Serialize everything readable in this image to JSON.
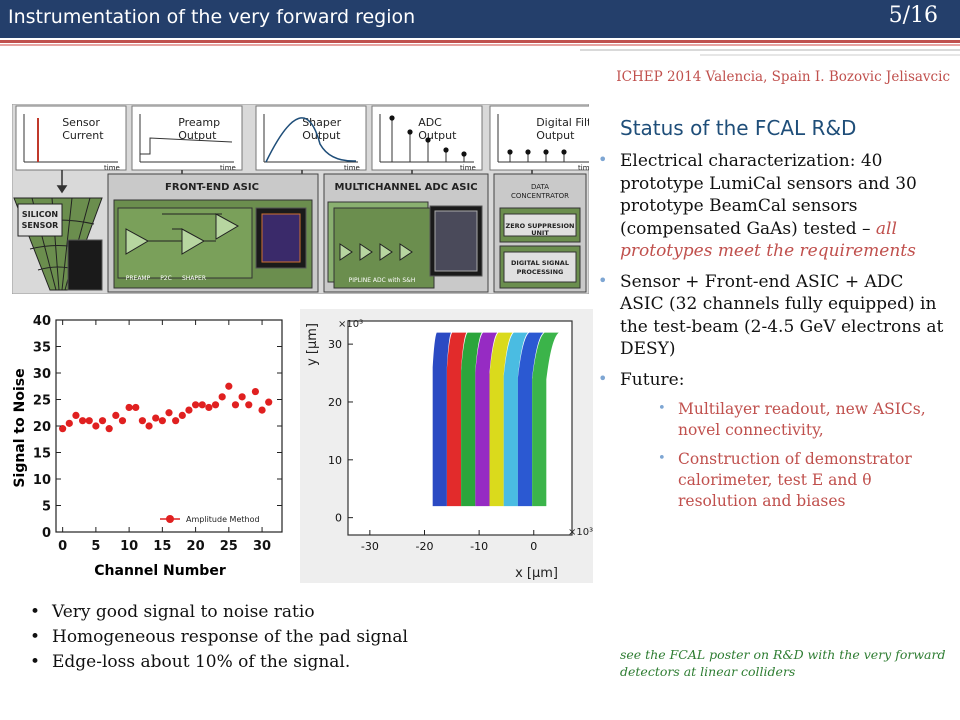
{
  "header": {
    "title": "Instrumentation of the very forward region",
    "page": "5/16"
  },
  "subheader": "ICHEP 2014 Valencia, Spain I. Bozovic Jelisavcic",
  "right": {
    "title": "Status of the FCAL R&D",
    "bullets": [
      {
        "text": "Electrical characterization: 40 prototype LumiCal sensors and 30 prototype BeamCal sensors (compensated GaAs) tested –",
        "highlight": "all prototypes meet the requirements"
      },
      {
        "text": "Sensor + Front-end ASIC + ADC ASIC (32 channels fully equipped)  in the test-beam (2-4.5 GeV electrons at DESY)"
      },
      {
        "text": "Future:"
      }
    ],
    "sub_bullets": [
      "Multilayer readout, new ASICs, novel connectivity,",
      "Construction of demonstrator calorimeter, test E and θ resolution and biases"
    ],
    "note": "see  the FCAL poster  on R&D with the very forward detectors at linear colliders"
  },
  "bottom_bullets": [
    "Very good signal to noise ratio",
    "Homogeneous response of the pad signal",
    "Edge-loss about 10% of the signal."
  ],
  "diagram": {
    "signals": [
      {
        "label": "Sensor\nCurrent",
        "axis": "time"
      },
      {
        "label": "Preamp\nOutput",
        "axis": "time"
      },
      {
        "label": "Shaper\nOutput",
        "axis": "time"
      },
      {
        "label": "ADC\nOutput",
        "axis": "time"
      },
      {
        "label": "Digital Filter\nOutput",
        "axis": "time"
      }
    ],
    "blocks": {
      "frontend": "FRONT-END ASIC",
      "adc": "MULTICHANNEL ADC ASIC",
      "concentrator": "DATA\nCONCENTRATOR",
      "zero_suppression": "ZERO SUPPRESION\nUNIT",
      "dsp": "DIGITAL SIGNAL\nPROCESSING",
      "sensor": "SILICON\nSENSOR",
      "preamp": "PREAMP",
      "p2c": "P2C",
      "shaper": "SHAPER",
      "pipeline": "PIPLINE ADC with S&H"
    }
  },
  "chart_data": [
    {
      "type": "scatter",
      "xlabel": "Channel Number",
      "ylabel": "Signal to Noise",
      "xlim": [
        -1,
        33
      ],
      "ylim": [
        0,
        40
      ],
      "xticks": [
        0,
        5,
        10,
        15,
        20,
        25,
        30
      ],
      "yticks": [
        0,
        5,
        10,
        15,
        20,
        25,
        30,
        35,
        40
      ],
      "legend": "Amplitude Method",
      "legend_position": "bottom-right",
      "marker_color": "#e02020",
      "x": [
        0,
        1,
        2,
        3,
        4,
        5,
        6,
        7,
        8,
        9,
        10,
        11,
        12,
        13,
        14,
        15,
        16,
        17,
        18,
        19,
        20,
        21,
        22,
        23,
        24,
        25,
        26,
        27,
        28,
        29,
        30,
        31
      ],
      "y": [
        19.5,
        20.5,
        22.0,
        21.0,
        21.0,
        20.0,
        21.0,
        19.5,
        22.0,
        21.0,
        23.5,
        23.5,
        21.0,
        20.0,
        21.5,
        21.0,
        22.5,
        21.0,
        22.0,
        23.0,
        24.0,
        24.0,
        23.5,
        24.0,
        25.5,
        27.5,
        24.0,
        25.5,
        24.0,
        26.5,
        23.0,
        24.5
      ]
    },
    {
      "type": "heatmap",
      "xlabel": "x [μm]",
      "ylabel": "y [μm]",
      "x_multiplier": "×10³",
      "y_multiplier": "×10³",
      "xticks": [
        -30,
        -20,
        -10,
        0
      ],
      "yticks": [
        0,
        10,
        20,
        30
      ],
      "xlim": [
        -34,
        7
      ],
      "ylim": [
        -3,
        34
      ],
      "pads": [
        {
          "color": "#2040c0"
        },
        {
          "color": "#e02020"
        },
        {
          "color": "#20a030"
        },
        {
          "color": "#9020c0"
        },
        {
          "color": "#d8d810"
        },
        {
          "color": "#40b8e0"
        },
        {
          "color": "#2050d0"
        },
        {
          "color": "#30b040"
        }
      ]
    }
  ],
  "colors": {
    "header_bg": "#243f6b",
    "stripe_red": "#c0504d",
    "title_blue": "#1f4e79",
    "accent_red": "#c0504d",
    "note_green": "#2e7d32",
    "bullet_blue": "#7ea6d3"
  }
}
